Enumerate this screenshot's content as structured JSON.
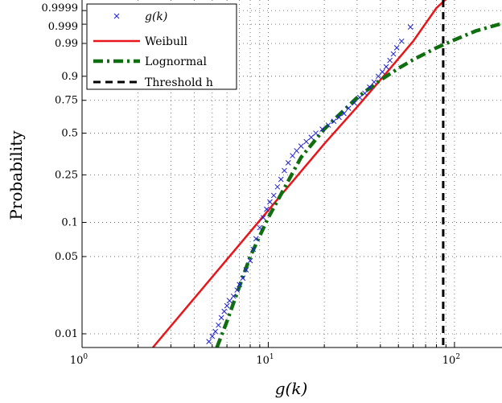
{
  "chart_data": {
    "type": "scatter",
    "xlabel": "g(k)",
    "ylabel": "Probability",
    "xscale": "log",
    "yscale": "weibull-probability",
    "xlim": [
      1,
      180
    ],
    "ylim": [
      0.0075,
      0.99999
    ],
    "grid": true,
    "legend_position": "top-left",
    "x_ticks": [
      {
        "value": 1,
        "label": "10",
        "exp": "0"
      },
      {
        "value": 10,
        "label": "10",
        "exp": "1"
      },
      {
        "value": 100,
        "label": "10",
        "exp": "2"
      }
    ],
    "y_ticks": [
      {
        "value": 0.01,
        "label": "0.01"
      },
      {
        "value": 0.05,
        "label": "0.05"
      },
      {
        "value": 0.1,
        "label": "0.1"
      },
      {
        "value": 0.25,
        "label": "0.25"
      },
      {
        "value": 0.5,
        "label": "0.5"
      },
      {
        "value": 0.75,
        "label": "0.75"
      },
      {
        "value": 0.9,
        "label": "0.9"
      },
      {
        "value": 0.99,
        "label": "0.99"
      },
      {
        "value": 0.999,
        "label": "0.999"
      },
      {
        "value": 0.9999,
        "label": "0.9999"
      }
    ],
    "series": [
      {
        "name": "g(k)",
        "kind": "markers",
        "marker": "x",
        "color": "#1f1fd6",
        "x": [
          4.8,
          5.0,
          5.2,
          5.4,
          5.6,
          5.8,
          6.0,
          6.2,
          6.5,
          6.8,
          7.0,
          7.3,
          7.6,
          8.0,
          8.3,
          8.6,
          9.0,
          9.4,
          9.8,
          10.2,
          10.7,
          11.2,
          11.7,
          12.2,
          12.8,
          13.5,
          14.2,
          15.0,
          16.0,
          17.0,
          18.0,
          19.5,
          21.0,
          22.5,
          24.0,
          25.5,
          27.0,
          29.0,
          31.0,
          33.0,
          35.0,
          37.0,
          39.0,
          41.0,
          43.0,
          45.0,
          47.0,
          49.0,
          52.0,
          58.0
        ],
        "y": [
          0.0085,
          0.0095,
          0.0105,
          0.012,
          0.014,
          0.016,
          0.018,
          0.02,
          0.022,
          0.025,
          0.028,
          0.032,
          0.038,
          0.046,
          0.058,
          0.072,
          0.09,
          0.11,
          0.13,
          0.15,
          0.17,
          0.2,
          0.23,
          0.27,
          0.31,
          0.35,
          0.38,
          0.41,
          0.44,
          0.47,
          0.5,
          0.53,
          0.56,
          0.59,
          0.62,
          0.65,
          0.69,
          0.73,
          0.77,
          0.8,
          0.84,
          0.87,
          0.9,
          0.92,
          0.94,
          0.96,
          0.975,
          0.985,
          0.992,
          0.9985
        ]
      },
      {
        "name": "Weibull",
        "kind": "line",
        "style": "solid",
        "color": "#e8161b",
        "x": [
          2.4,
          5,
          10,
          20,
          30,
          40,
          60,
          80,
          100,
          120
        ],
        "y": [
          0.0075,
          0.0328,
          0.1273,
          0.4249,
          0.7006,
          0.8811,
          0.992,
          0.99994,
          0.999999,
          0.9999999
        ]
      },
      {
        "name": "Lognormal",
        "kind": "line",
        "style": "dash-dot",
        "color": "#0f6e0f",
        "x": [
          5.3,
          6,
          8,
          10,
          15,
          20,
          30,
          40,
          50,
          60,
          80,
          100,
          130,
          180
        ],
        "y": [
          0.0075,
          0.013,
          0.05,
          0.11,
          0.34,
          0.53,
          0.77,
          0.88,
          0.934,
          0.962,
          0.985,
          0.993,
          0.9975,
          0.9991
        ]
      },
      {
        "name": "Threshold h",
        "kind": "vline",
        "style": "dashed",
        "color": "#000000",
        "x": 87
      }
    ],
    "legend": [
      {
        "label": "g(k)",
        "italic": true
      },
      {
        "label": "Weibull",
        "italic": false
      },
      {
        "label": "Lognormal",
        "italic": false
      },
      {
        "label": "Threshold h",
        "italic": false
      }
    ]
  }
}
